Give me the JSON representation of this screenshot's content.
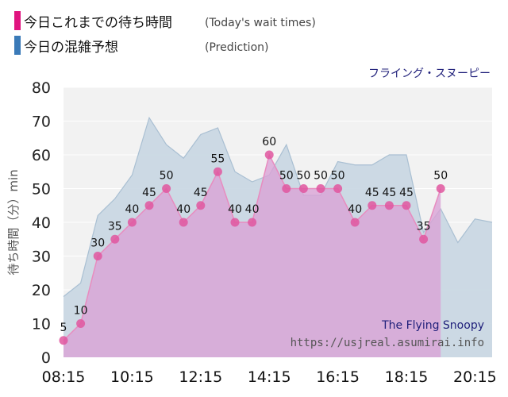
{
  "legend": {
    "today_label": "今日これまでの待ち時間",
    "today_sub": "(Today's wait times)",
    "prediction_label": "今日の混雑予想",
    "prediction_sub": "(Prediction)"
  },
  "attraction_name": "フライング・スヌーピー",
  "watermark": {
    "title": "The Flying Snoopy",
    "url": "https://usjreal.asumirai.info"
  },
  "colors": {
    "today": "#e0569f",
    "today_fill": "#d9a2d6",
    "prediction": "#3a7ab8",
    "prediction_fill": "#c8d6e2",
    "plot_bg": "#f2f2f2"
  },
  "chart_data": {
    "type": "area",
    "ylabel": "待ち時間（分）min",
    "ylim": [
      0,
      80
    ],
    "yticks": [
      0,
      10,
      20,
      30,
      40,
      50,
      60,
      70,
      80
    ],
    "xticks": [
      "08:15",
      "10:15",
      "12:15",
      "14:15",
      "16:15",
      "18:15",
      "20:15"
    ],
    "x_range": [
      "08:15",
      "20:45"
    ],
    "series": [
      {
        "name": "今日これまでの待ち時間",
        "points": [
          [
            "08:15",
            5
          ],
          [
            "08:45",
            10
          ],
          [
            "09:15",
            30
          ],
          [
            "09:45",
            35
          ],
          [
            "10:15",
            40
          ],
          [
            "10:45",
            45
          ],
          [
            "11:15",
            50
          ],
          [
            "11:45",
            40
          ],
          [
            "12:15",
            45
          ],
          [
            "12:45",
            55
          ],
          [
            "13:15",
            40
          ],
          [
            "13:45",
            40
          ],
          [
            "14:15",
            60
          ],
          [
            "14:45",
            50
          ],
          [
            "15:15",
            50
          ],
          [
            "15:45",
            50
          ],
          [
            "16:15",
            50
          ],
          [
            "16:45",
            40
          ],
          [
            "17:15",
            45
          ],
          [
            "17:45",
            45
          ],
          [
            "18:15",
            45
          ],
          [
            "18:45",
            35
          ],
          [
            "19:15",
            50
          ]
        ]
      },
      {
        "name": "今日の混雑予想",
        "points": [
          [
            "08:15",
            18
          ],
          [
            "08:45",
            22
          ],
          [
            "09:15",
            42
          ],
          [
            "09:45",
            47
          ],
          [
            "10:15",
            54
          ],
          [
            "10:45",
            71
          ],
          [
            "11:15",
            63
          ],
          [
            "11:45",
            59
          ],
          [
            "12:15",
            66
          ],
          [
            "12:45",
            68
          ],
          [
            "13:15",
            55
          ],
          [
            "13:45",
            52
          ],
          [
            "14:15",
            54
          ],
          [
            "14:45",
            63
          ],
          [
            "15:15",
            48
          ],
          [
            "15:45",
            48
          ],
          [
            "16:15",
            58
          ],
          [
            "16:45",
            57
          ],
          [
            "17:15",
            57
          ],
          [
            "17:45",
            60
          ],
          [
            "18:15",
            60
          ],
          [
            "18:45",
            37
          ],
          [
            "19:15",
            44
          ],
          [
            "19:45",
            34
          ],
          [
            "20:15",
            41
          ],
          [
            "20:45",
            40
          ]
        ]
      }
    ]
  }
}
